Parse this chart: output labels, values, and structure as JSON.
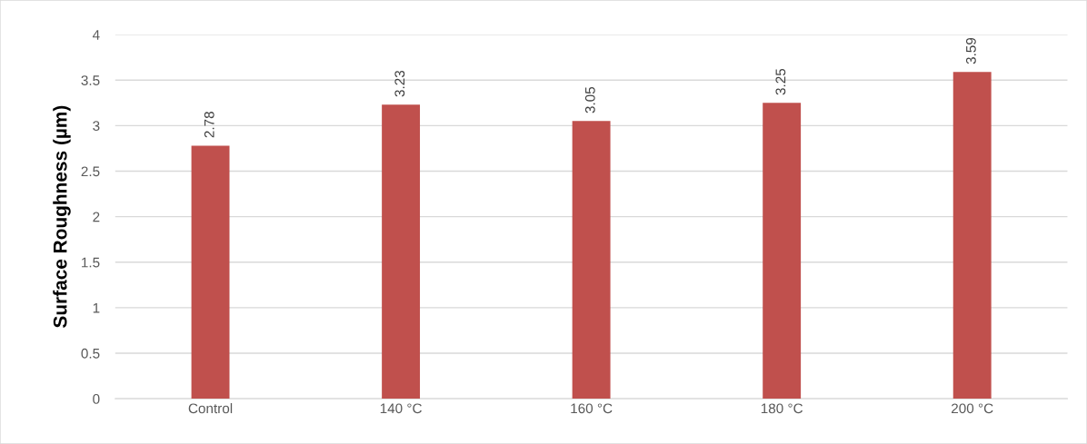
{
  "chart_data": {
    "type": "bar",
    "ylabel": "Surface Roughness (µm)",
    "categories": [
      "Control",
      "140 °C",
      "160 °C",
      "180 °C",
      "200 °C"
    ],
    "values": [
      2.78,
      3.23,
      3.05,
      3.25,
      3.59
    ],
    "color": "#c0504d",
    "ylim": [
      0,
      4
    ],
    "yticks": [
      0,
      0.5,
      1,
      1.5,
      2,
      2.5,
      3,
      3.5,
      4
    ],
    "grid": "y",
    "data_labels": true,
    "legend": false
  }
}
